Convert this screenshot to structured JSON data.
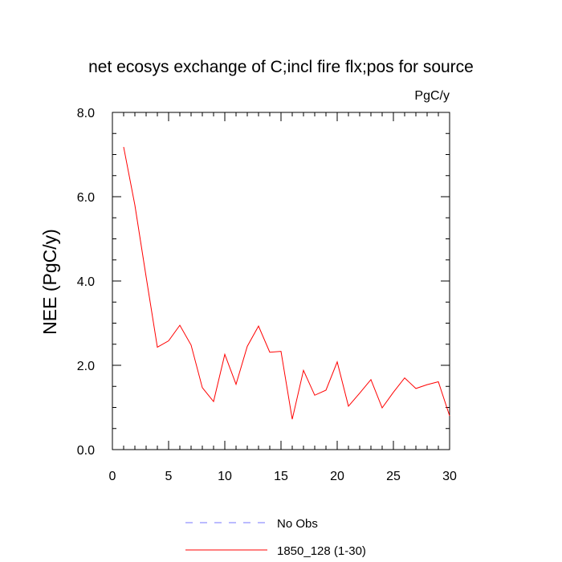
{
  "chart_data": {
    "type": "line",
    "title": "net ecosys exchange of C;incl fire flx;pos for source",
    "units_label": "PgC/y",
    "ylabel": "NEE  (PgC/y)",
    "xlabel": "",
    "xlim": [
      0,
      30
    ],
    "ylim": [
      0.0,
      8.0
    ],
    "x_ticks": [
      "0",
      "5",
      "10",
      "15",
      "20",
      "25",
      "30"
    ],
    "y_ticks": [
      "0.0",
      "2.0",
      "4.0",
      "6.0",
      "8.0"
    ],
    "grid": false,
    "legend_position": "bottom",
    "series": [
      {
        "name": "1850_128 (1-30)",
        "color": "#ff0000",
        "dash": "solid",
        "x": [
          1,
          2,
          3,
          4,
          5,
          6,
          7,
          8,
          9,
          10,
          11,
          12,
          13,
          14,
          15,
          16,
          17,
          18,
          19,
          20,
          21,
          22,
          23,
          24,
          25,
          26,
          27,
          28,
          29,
          30
        ],
        "y": [
          7.18,
          5.8,
          4.1,
          2.43,
          2.58,
          2.95,
          2.48,
          1.47,
          1.14,
          2.26,
          1.55,
          2.45,
          2.93,
          2.31,
          2.33,
          0.72,
          1.88,
          1.29,
          1.41,
          2.08,
          1.03,
          1.34,
          1.66,
          0.99,
          1.36,
          1.7,
          1.45,
          1.54,
          1.61,
          0.8
        ]
      },
      {
        "name": "No Obs",
        "color": "#7777ff",
        "dash": "dashed",
        "x": [],
        "y": []
      }
    ]
  }
}
